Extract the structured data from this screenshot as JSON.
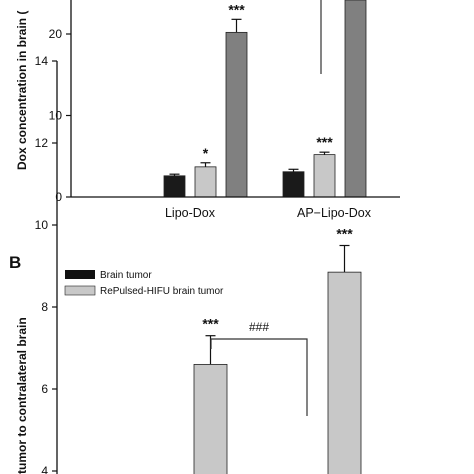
{
  "chart_data": [
    {
      "type": "bar",
      "ylabel": "Dox concentration in brain (",
      "yticks": [
        0,
        10,
        20
      ],
      "ylim": [
        0,
        29
      ],
      "categories": [
        "Lipo-Dox",
        "AP−Lipo-Dox"
      ],
      "series": [
        {
          "color": "#1a1a1a",
          "values": [
            2.6,
            3.1
          ],
          "errors": [
            0.2,
            0.3
          ]
        },
        {
          "color": "#c8c8c8",
          "values": [
            3.7,
            5.2
          ],
          "errors": [
            0.5,
            0.3
          ]
        },
        {
          "color": "#808080",
          "values": [
            20.2,
            29
          ],
          "errors": [
            1.6,
            null
          ]
        }
      ],
      "annotations": [
        {
          "text": "*",
          "category": 0,
          "series": 1
        },
        {
          "text": "***",
          "category": 0,
          "series": 2
        },
        {
          "text": "***",
          "category": 1,
          "series": 1
        }
      ],
      "grid": false
    },
    {
      "type": "bar",
      "panel_label": "B",
      "ylabel": "tumor to contralateral brain",
      "yticks": [
        4,
        6,
        8,
        10,
        12,
        14
      ],
      "ylim": [
        4,
        14
      ],
      "legend": [
        "Brain tumor",
        "RePulsed-HIFU brain tumor"
      ],
      "legend_colors": [
        "#111111",
        "#c8c8c8"
      ],
      "bars": [
        {
          "color": "#c8c8c8",
          "value": 6.6,
          "error": 0.7
        },
        {
          "color": "#c8c8c8",
          "value": 8.85,
          "error": 0.65
        }
      ],
      "annotations": [
        {
          "text": "***",
          "bar": 0
        },
        {
          "text": "***",
          "bar": 1
        }
      ],
      "bracket_label": "###",
      "grid": false
    }
  ]
}
